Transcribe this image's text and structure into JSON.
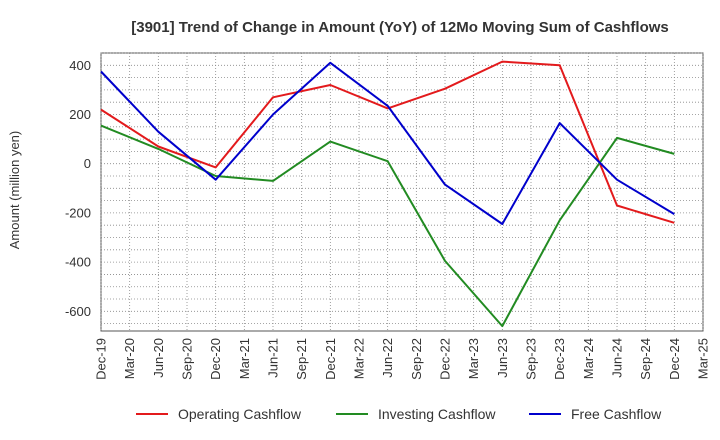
{
  "chart_data": {
    "type": "line",
    "title": "[3901]  Trend of Change in Amount (YoY) of 12Mo Moving Sum of Cashflows",
    "xlabel": "",
    "ylabel": "Amount (million yen)",
    "ylim": [
      -680,
      450
    ],
    "yticks": [
      400,
      200,
      0,
      -200,
      -400,
      -600
    ],
    "ytick_labels": [
      "400",
      "200",
      "0",
      "-200",
      "-400",
      "-600"
    ],
    "categories": [
      "Dec-19",
      "Mar-20",
      "Jun-20",
      "Sep-20",
      "Dec-20",
      "Mar-21",
      "Jun-21",
      "Sep-21",
      "Dec-21",
      "Mar-22",
      "Jun-22",
      "Sep-22",
      "Dec-22",
      "Mar-23",
      "Jun-23",
      "Sep-23",
      "Dec-23",
      "Mar-24",
      "Jun-24",
      "Sep-24",
      "Dec-24",
      "Mar-25"
    ],
    "grid": true,
    "legend_position": "bottom",
    "series": [
      {
        "name": "Operating Cashflow",
        "color": "#e31a1c",
        "points": [
          {
            "x": "Dec-19",
            "y": 220
          },
          {
            "x": "Jun-20",
            "y": 70
          },
          {
            "x": "Dec-20",
            "y": -15
          },
          {
            "x": "Jun-21",
            "y": 270
          },
          {
            "x": "Dec-21",
            "y": 320
          },
          {
            "x": "Jun-22",
            "y": 225
          },
          {
            "x": "Dec-22",
            "y": 305
          },
          {
            "x": "Jun-23",
            "y": 415
          },
          {
            "x": "Dec-23",
            "y": 400
          },
          {
            "x": "Jun-24",
            "y": -170
          },
          {
            "x": "Dec-24",
            "y": -240
          }
        ]
      },
      {
        "name": "Investing Cashflow",
        "color": "#228b22",
        "points": [
          {
            "x": "Dec-19",
            "y": 155
          },
          {
            "x": "Jun-20",
            "y": 60
          },
          {
            "x": "Dec-20",
            "y": -50
          },
          {
            "x": "Jun-21",
            "y": -70
          },
          {
            "x": "Dec-21",
            "y": 90
          },
          {
            "x": "Jun-22",
            "y": 10
          },
          {
            "x": "Dec-22",
            "y": -395
          },
          {
            "x": "Jun-23",
            "y": -660
          },
          {
            "x": "Dec-23",
            "y": -230
          },
          {
            "x": "Jun-24",
            "y": 105
          },
          {
            "x": "Dec-24",
            "y": 40
          }
        ]
      },
      {
        "name": "Free Cashflow",
        "color": "#0000cc",
        "points": [
          {
            "x": "Dec-19",
            "y": 375
          },
          {
            "x": "Jun-20",
            "y": 130
          },
          {
            "x": "Dec-20",
            "y": -65
          },
          {
            "x": "Jun-21",
            "y": 200
          },
          {
            "x": "Dec-21",
            "y": 410
          },
          {
            "x": "Jun-22",
            "y": 235
          },
          {
            "x": "Dec-22",
            "y": -85
          },
          {
            "x": "Jun-23",
            "y": -245
          },
          {
            "x": "Dec-23",
            "y": 165
          },
          {
            "x": "Jun-24",
            "y": -65
          },
          {
            "x": "Dec-24",
            "y": -205
          }
        ]
      }
    ]
  }
}
